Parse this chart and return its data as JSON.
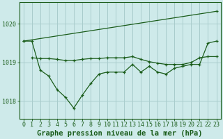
{
  "background_color": "#ceeaea",
  "grid_color": "#a8cccc",
  "line_color": "#1a5c1a",
  "xlabel": "Graphe pression niveau de la mer (hPa)",
  "xlabel_fontsize": 7.5,
  "tick_fontsize": 6.0,
  "xlim": [
    -0.5,
    23.5
  ],
  "ylim": [
    1017.55,
    1020.55
  ],
  "yticks": [
    1018,
    1019,
    1020
  ],
  "xticks": [
    0,
    1,
    2,
    3,
    4,
    5,
    6,
    7,
    8,
    9,
    10,
    11,
    12,
    13,
    14,
    15,
    16,
    17,
    18,
    19,
    20,
    21,
    22,
    23
  ],
  "series": [
    {
      "x": [
        0,
        1,
        2,
        3,
        4,
        5,
        6,
        7,
        8,
        9,
        10,
        11,
        12,
        13,
        14,
        15,
        16,
        17,
        18,
        19,
        20,
        21,
        22,
        23
      ],
      "y": [
        1019.55,
        1019.55,
        1018.8,
        1018.65,
        1018.3,
        1018.1,
        1017.82,
        1018.15,
        1018.45,
        1018.7,
        1018.75,
        1018.75,
        1018.75,
        1018.95,
        1018.75,
        1018.9,
        1018.75,
        1018.7,
        1018.85,
        1018.9,
        1018.95,
        1018.95,
        1019.5,
        1019.55
      ]
    },
    {
      "x": [
        1,
        2,
        3,
        4,
        5,
        6,
        7,
        8,
        9,
        10,
        11,
        12,
        13,
        14,
        15,
        16,
        17,
        18,
        19,
        20,
        21,
        22,
        23
      ],
      "y": [
        1019.12,
        1019.1,
        1019.1,
        1019.08,
        1019.05,
        1019.05,
        1019.08,
        1019.1,
        1019.1,
        1019.12,
        1019.12,
        1019.12,
        1019.15,
        1019.08,
        1019.02,
        1018.98,
        1018.95,
        1018.95,
        1018.95,
        1019.0,
        1019.12,
        1019.15,
        1019.15
      ]
    },
    {
      "x": [
        0,
        23
      ],
      "y": [
        1019.55,
        1020.32
      ]
    }
  ]
}
